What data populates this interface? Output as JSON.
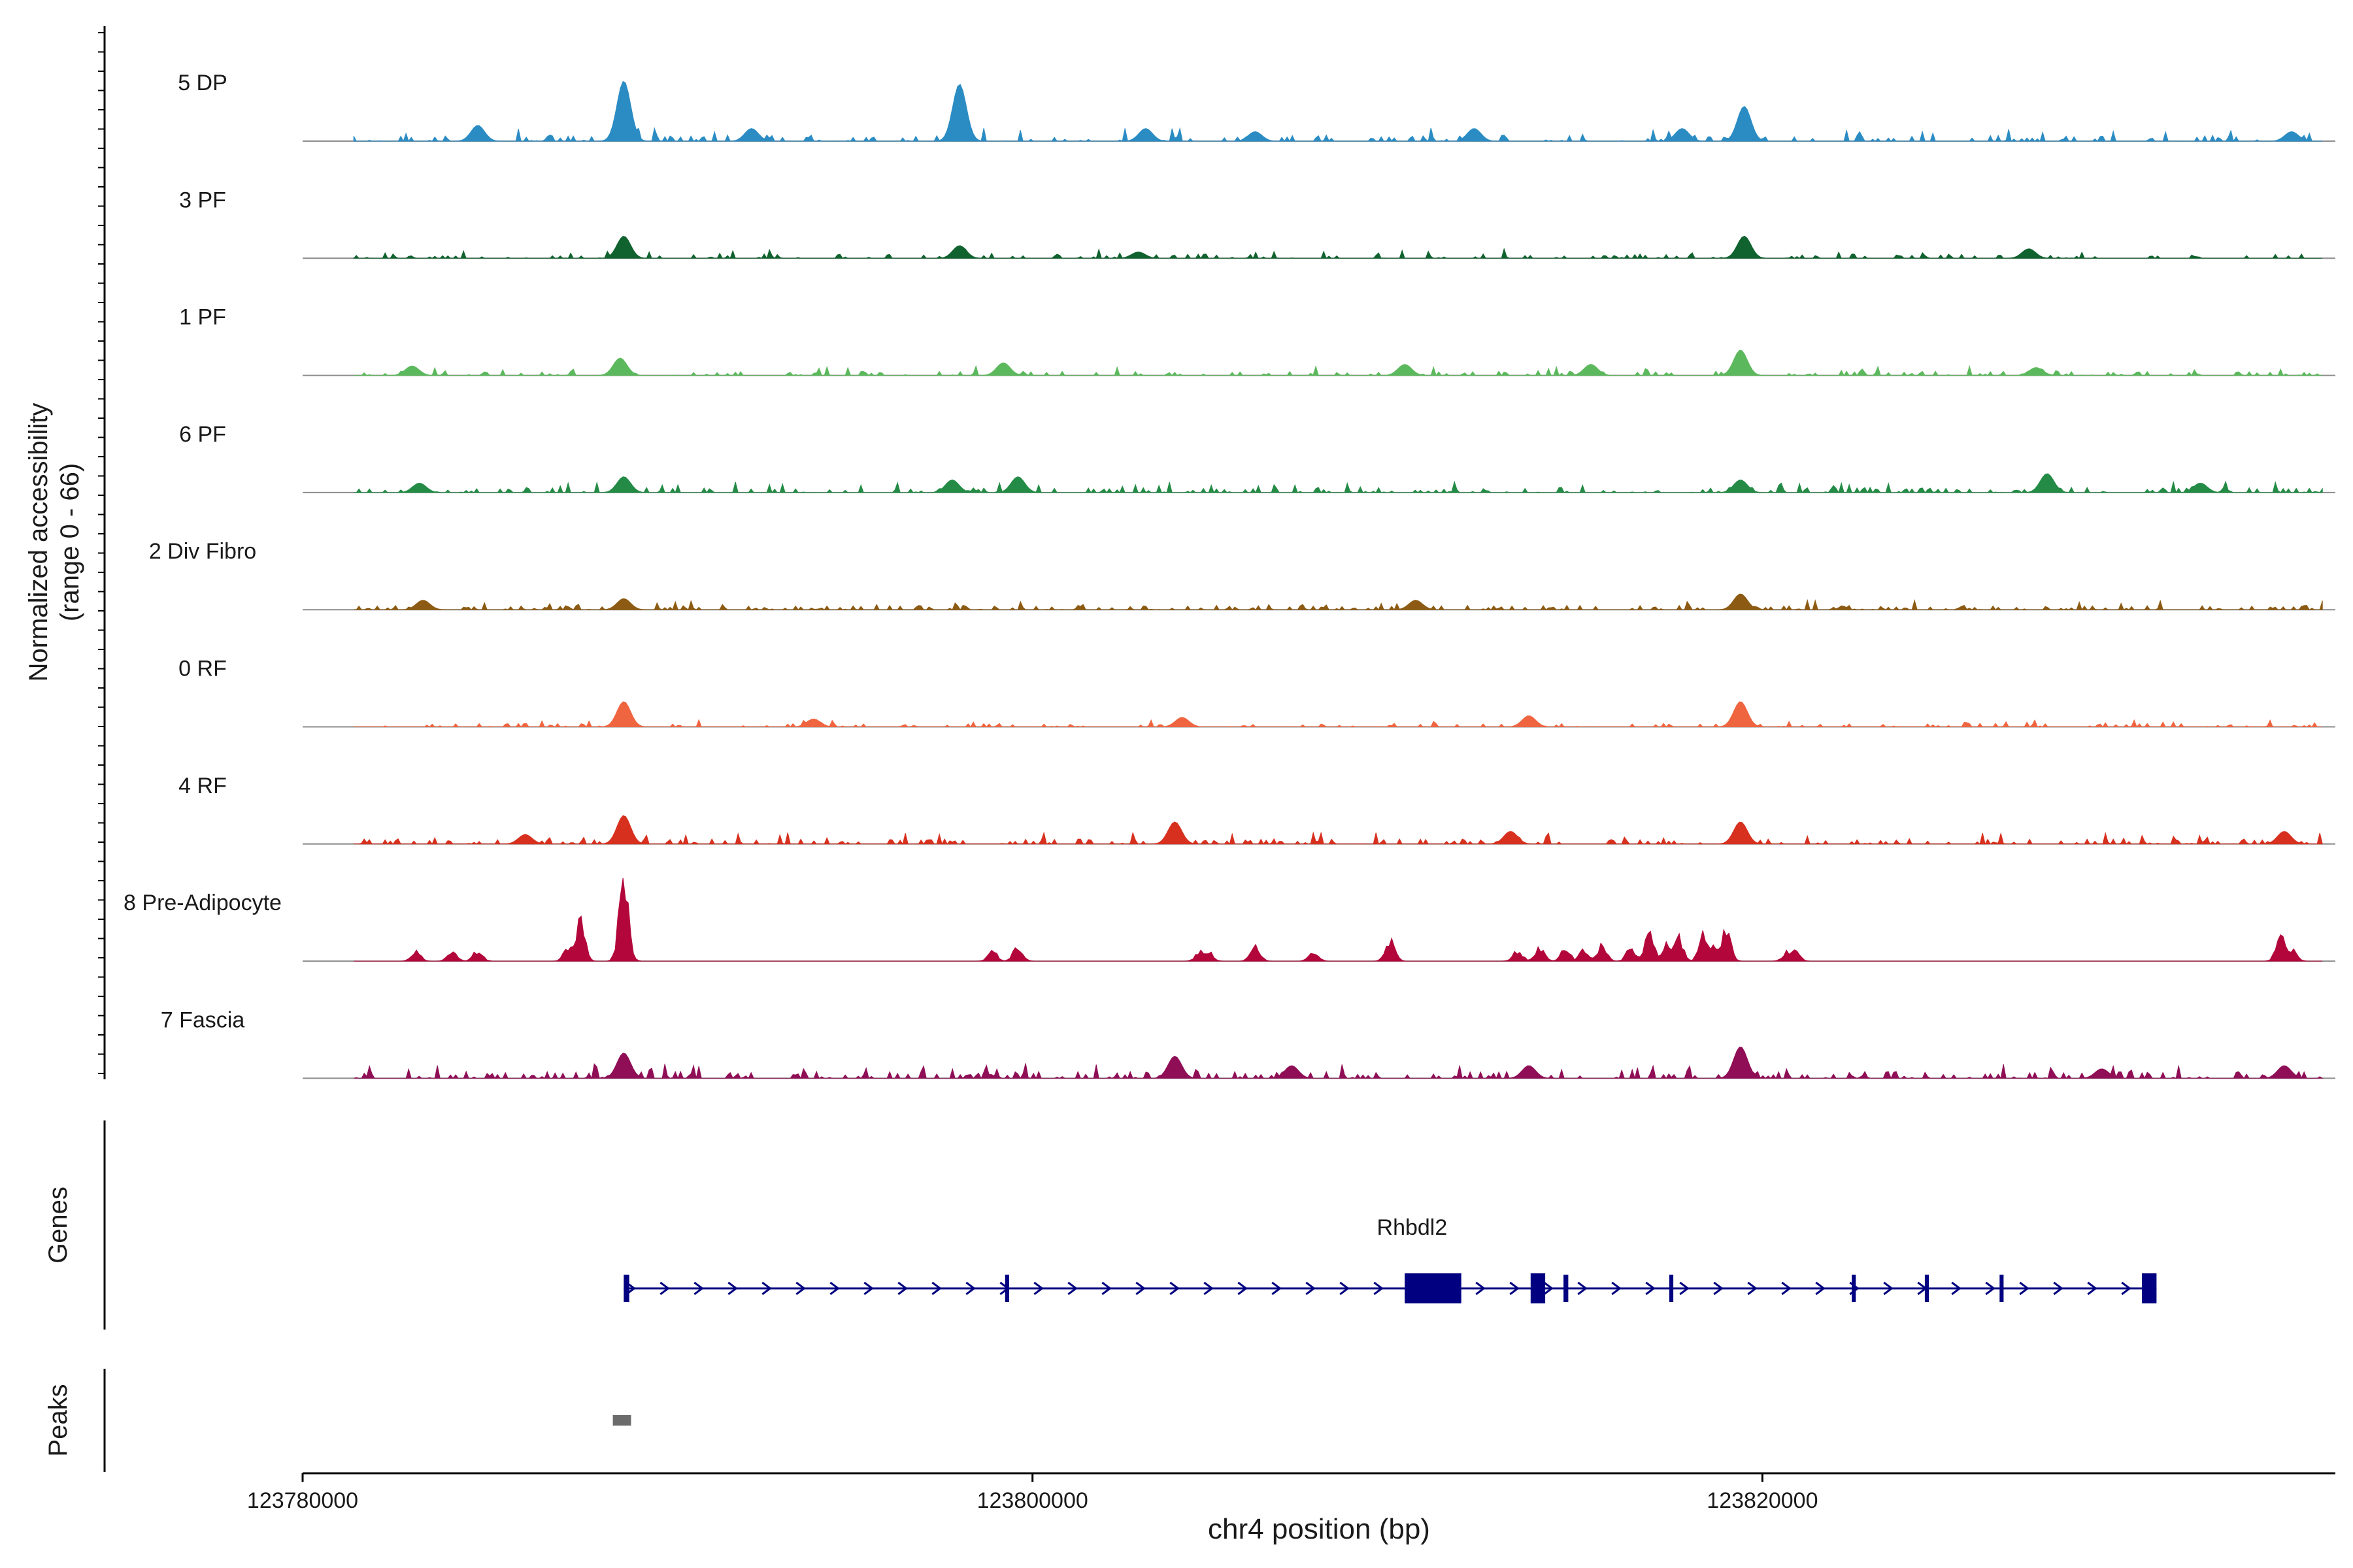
{
  "chart_data": {
    "type": "area",
    "chromosome": "chr4",
    "xlabel": "chr4 position (bp)",
    "ylabel": "Normalized accessibility",
    "ylabel_sub": "(range 0 - 66)",
    "xlim": [
      123780000,
      123835700
    ],
    "ylim": [
      0,
      66
    ],
    "x_ticks": [
      123780000,
      123800000,
      123820000
    ],
    "x_tick_labels": [
      "123780000",
      "123800000",
      "123820000"
    ],
    "tracks": [
      {
        "name": "5 DP",
        "color": "#2b8cc4",
        "density": 0.55,
        "noise": 7,
        "peaks": [
          [
            123788800,
            38
          ],
          [
            123798000,
            36
          ],
          [
            123784800,
            10
          ],
          [
            123792300,
            8
          ],
          [
            123819500,
            22
          ],
          [
            123817800,
            8
          ],
          [
            123812100,
            8
          ],
          [
            123803100,
            8
          ],
          [
            123806100,
            6
          ],
          [
            123834500,
            6
          ]
        ]
      },
      {
        "name": "3 PF",
        "color": "#10622f",
        "density": 0.5,
        "noise": 5,
        "peaks": [
          [
            123788800,
            14
          ],
          [
            123798000,
            8
          ],
          [
            123819500,
            14
          ],
          [
            123802900,
            4
          ],
          [
            123827300,
            6
          ]
        ]
      },
      {
        "name": "1 PF",
        "color": "#5cb85c",
        "density": 0.55,
        "noise": 5,
        "peaks": [
          [
            123788700,
            11
          ],
          [
            123799200,
            8
          ],
          [
            123819400,
            16
          ],
          [
            123810200,
            7
          ],
          [
            123815300,
            7
          ],
          [
            123783000,
            6
          ],
          [
            123827500,
            5
          ]
        ]
      },
      {
        "name": "6 PF",
        "color": "#238b45",
        "density": 0.6,
        "noise": 6,
        "peaks": [
          [
            123788800,
            10
          ],
          [
            123797800,
            8
          ],
          [
            123799600,
            10
          ],
          [
            123819400,
            8
          ],
          [
            123827800,
            12
          ],
          [
            123783200,
            6
          ],
          [
            123832000,
            6
          ]
        ]
      },
      {
        "name": "2 Div Fibro",
        "color": "#8c5a12",
        "density": 0.7,
        "noise": 5,
        "peaks": [
          [
            123819400,
            10
          ],
          [
            123788800,
            7
          ],
          [
            123783300,
            6
          ],
          [
            123810500,
            6
          ]
        ]
      },
      {
        "name": "0 RF",
        "color": "#ef6540",
        "density": 0.5,
        "noise": 4,
        "peaks": [
          [
            123788800,
            16
          ],
          [
            123819400,
            16
          ],
          [
            123813600,
            7
          ],
          [
            123804100,
            6
          ],
          [
            123794000,
            5
          ]
        ]
      },
      {
        "name": "4 RF",
        "color": "#d7301f",
        "density": 0.7,
        "noise": 6,
        "peaks": [
          [
            123788800,
            18
          ],
          [
            123803900,
            14
          ],
          [
            123819400,
            14
          ],
          [
            123813100,
            8
          ],
          [
            123834300,
            8
          ],
          [
            123786100,
            6
          ]
        ]
      },
      {
        "name": "8 Pre-Adipocyte",
        "color": "#b3073b",
        "density": 0,
        "noise": 0,
        "peaks": [
          [
            123788800,
            66
          ],
          [
            123787600,
            30
          ],
          [
            123819000,
            26
          ],
          [
            123818400,
            22
          ],
          [
            123817700,
            18
          ],
          [
            123816900,
            20
          ],
          [
            123815600,
            12
          ],
          [
            123834200,
            18
          ],
          [
            123798900,
            8
          ],
          [
            123799600,
            12
          ],
          [
            123806100,
            12
          ],
          [
            123807700,
            8
          ],
          [
            123809800,
            16
          ],
          [
            123813900,
            10
          ],
          [
            123814600,
            10
          ],
          [
            123815100,
            8
          ],
          [
            123820700,
            8
          ],
          [
            123820900,
            8
          ],
          [
            123783100,
            8
          ],
          [
            123784100,
            8
          ],
          [
            123784800,
            8
          ],
          [
            123787300,
            12
          ],
          [
            123804600,
            8
          ],
          [
            123804800,
            8
          ],
          [
            123813300,
            8
          ],
          [
            123816400,
            10
          ],
          [
            123817400,
            14
          ],
          [
            123818700,
            12
          ],
          [
            123834500,
            10
          ]
        ]
      },
      {
        "name": "7 Fascia",
        "color": "#8f0e56",
        "density": 0.75,
        "noise": 8,
        "peaks": [
          [
            123788800,
            16
          ],
          [
            123803900,
            14
          ],
          [
            123819400,
            20
          ],
          [
            123834300,
            8
          ],
          [
            123807100,
            8
          ],
          [
            123813600,
            8
          ],
          [
            123829300,
            6
          ]
        ]
      }
    ],
    "gene": {
      "name": "Rhbdl2",
      "strand": "+",
      "start": 123788800,
      "end": 123830800,
      "exons": [
        [
          123788800,
          123788950
        ],
        [
          123799250,
          123799360
        ],
        [
          123810200,
          123811750
        ],
        [
          123813650,
          123814050
        ],
        [
          123814550,
          123814680
        ],
        [
          123817450,
          123817560
        ],
        [
          123822450,
          123822560
        ],
        [
          123824450,
          123824560
        ],
        [
          123826500,
          123826610
        ],
        [
          123830400,
          123830800
        ]
      ]
    },
    "peaks_track": [
      [
        123788500,
        123789000
      ]
    ]
  },
  "panels": {
    "genes_label": "Genes",
    "peaks_label": "Peaks"
  }
}
